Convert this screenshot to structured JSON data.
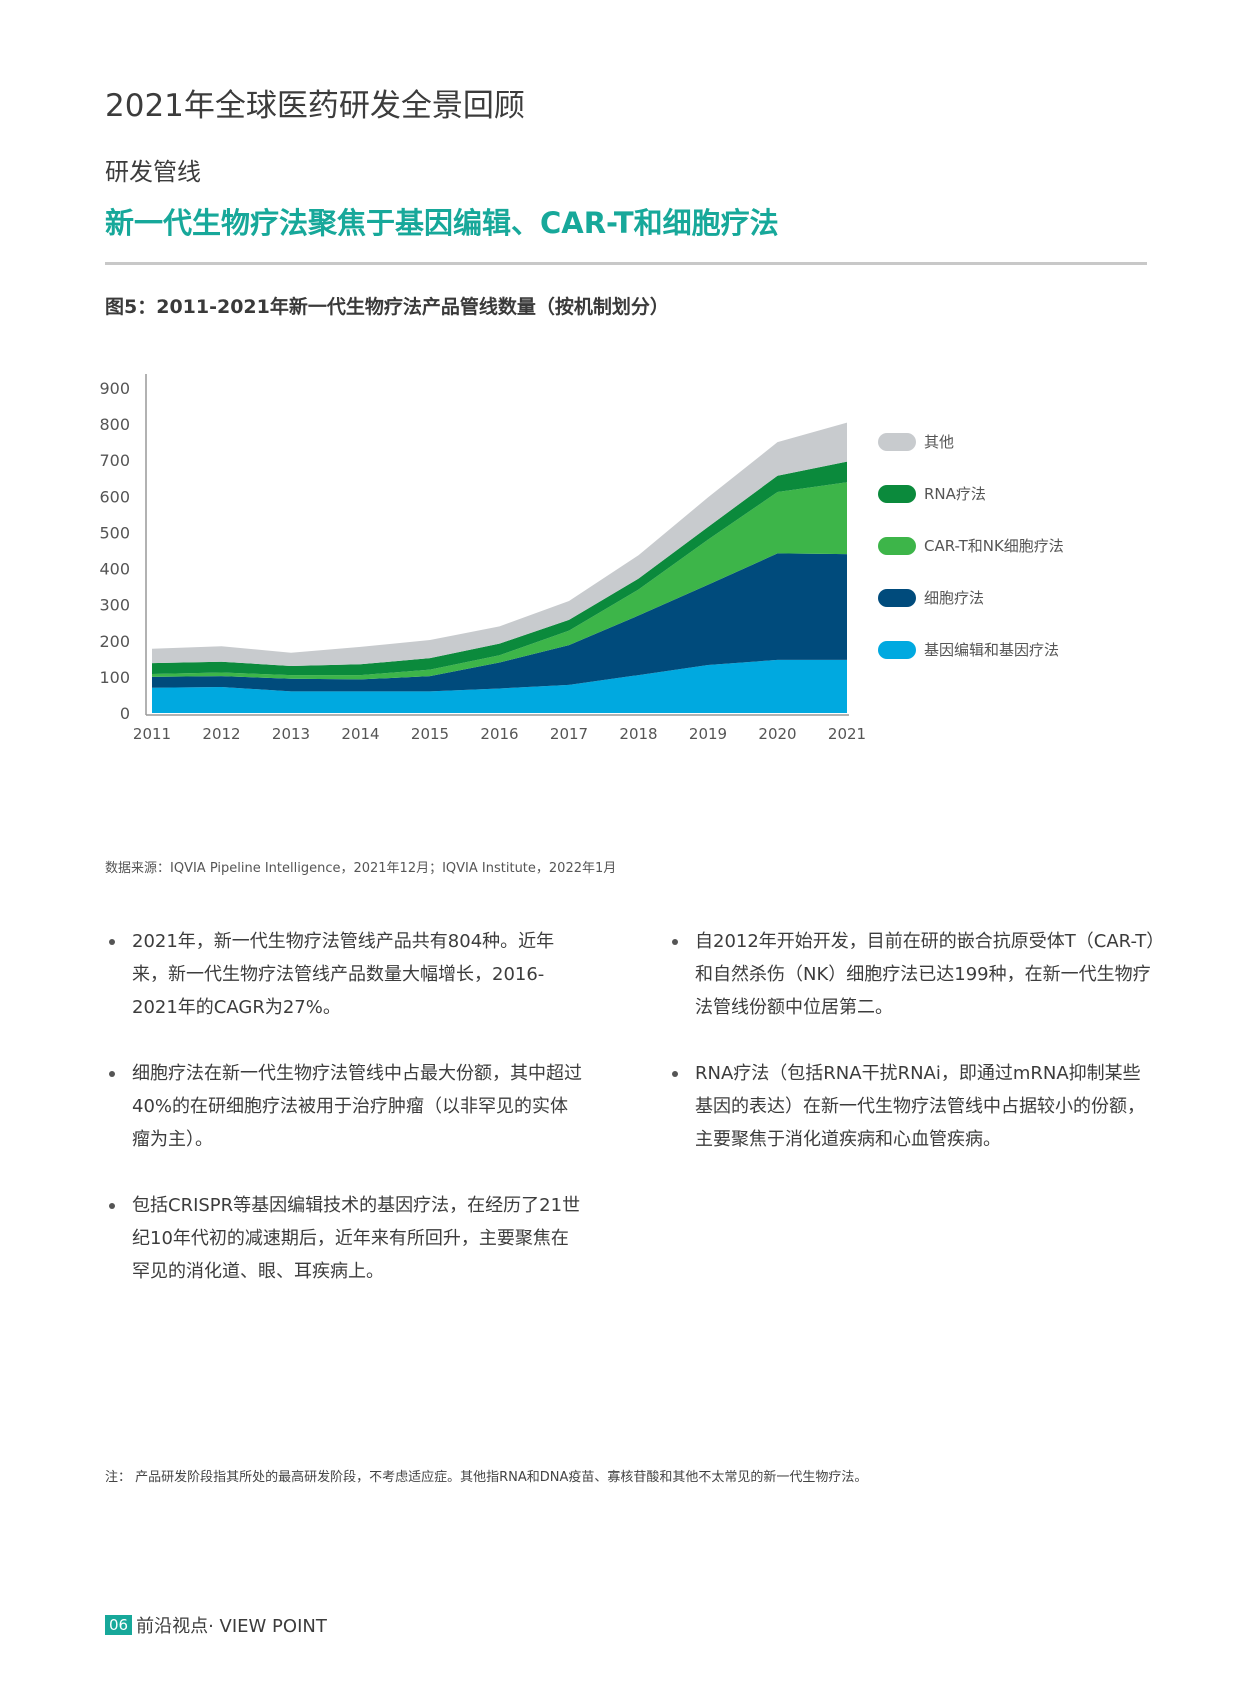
{
  "header": {
    "report_title": "2021年全球医药研发全景回顾",
    "section": "研发管线",
    "headline": "新一代生物疗法聚焦于基因编辑、CAR-T和细胞疗法"
  },
  "figure": {
    "title": "图5：2011-2021年新一代生物疗法产品管线数量（按机制划分）",
    "source": "数据来源：IQVIA Pipeline Intelligence，2021年12月；IQVIA Institute，2022年1月"
  },
  "chart_data": {
    "type": "area",
    "stacked": true,
    "x": [
      "2011",
      "2012",
      "2013",
      "2014",
      "2015",
      "2016",
      "2017",
      "2018",
      "2019",
      "2020",
      "2021"
    ],
    "y_ticks": [
      "0",
      "100",
      "200",
      "300",
      "400",
      "500",
      "600",
      "700",
      "800",
      "900"
    ],
    "ylim": [
      0,
      900
    ],
    "legend_position": "right",
    "series": [
      {
        "name": "基因编辑和基因疗法",
        "color": "#00a9e0",
        "values": [
          70,
          72,
          60,
          60,
          60,
          68,
          78,
          105,
          133,
          147,
          147
        ]
      },
      {
        "name": "细胞疗法",
        "color": "#004b7c",
        "values": [
          30,
          30,
          35,
          33,
          42,
          72,
          110,
          165,
          222,
          295,
          293
        ]
      },
      {
        "name": "CAR-T和NK细胞疗法",
        "color": "#3db549",
        "values": [
          8,
          10,
          10,
          12,
          18,
          20,
          40,
          72,
          125,
          170,
          199
        ]
      },
      {
        "name": "RNA疗法",
        "color": "#0b8a3c",
        "values": [
          30,
          30,
          25,
          30,
          32,
          32,
          30,
          30,
          35,
          45,
          57
        ]
      },
      {
        "name": "其他",
        "color": "#c8cbce",
        "values": [
          40,
          43,
          37,
          48,
          50,
          48,
          52,
          65,
          82,
          93,
          108
        ]
      }
    ]
  },
  "bullets_left": [
    "2021年，新一代生物疗法管线产品共有804种。近年来，新一代生物疗法管线产品数量大幅增长，2016-2021年的CAGR为27%。",
    "细胞疗法在新一代生物疗法管线中占最大份额，其中超过40%的在研细胞疗法被用于治疗肿瘤（以非罕见的实体瘤为主）。",
    "包括CRISPR等基因编辑技术的基因疗法，在经历了21世纪10年代初的减速期后，近年来有所回升，主要聚焦在罕见的消化道、眼、耳疾病上。"
  ],
  "bullets_right": [
    "自2012年开始开发，目前在研的嵌合抗原受体T（CAR-T）和自然杀伤（NK）细胞疗法已达199种，在新一代生物疗法管线份额中位居第二。",
    "RNA疗法（包括RNA干扰RNAi，即通过mRNA抑制某些基因的表达）在新一代生物疗法管线中占据较小的份额，主要聚焦于消化道疾病和心血管疾病。"
  ],
  "note": "注：  产品研发阶段指其所处的最高研发阶段，不考虑适应症。其他指RNA和DNA疫苗、寡核苷酸和其他不太常见的新一代生物疗法。",
  "footer": {
    "page_number": "06",
    "publication": "前沿视点· VIEW POINT"
  }
}
